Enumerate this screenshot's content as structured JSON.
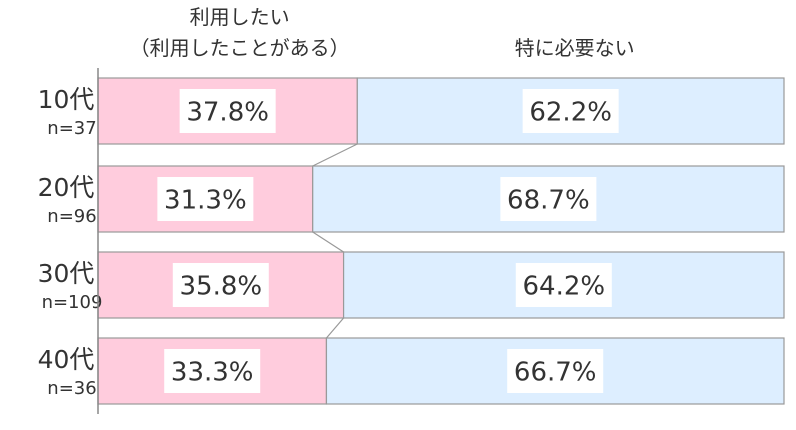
{
  "chart_data": {
    "type": "bar",
    "stacked": true,
    "orientation": "horizontal",
    "normalized_percent": true,
    "series_headers": [
      [
        "利用したい",
        "（利用したことがある）"
      ],
      [
        "特に必要ない"
      ]
    ],
    "categories": [
      {
        "label": "10代",
        "n": "n=37"
      },
      {
        "label": "20代",
        "n": "n=96"
      },
      {
        "label": "30代",
        "n": "n=109"
      },
      {
        "label": "40代",
        "n": "n=36"
      }
    ],
    "series": [
      {
        "values": [
          37.8,
          31.3,
          35.8,
          33.3
        ],
        "labels": [
          "37.8%",
          "31.3%",
          "35.8%",
          "33.3%"
        ],
        "color": "#FFCCDD"
      },
      {
        "values": [
          62.2,
          68.7,
          64.2,
          66.7
        ],
        "labels": [
          "62.2%",
          "68.7%",
          "64.2%",
          "66.7%"
        ],
        "color": "#DDEEFF"
      }
    ],
    "xlim": [
      0,
      100
    ],
    "grid": false,
    "connector_lines": true,
    "colors": {
      "bar_border": "#999999",
      "axis_line": "#888888",
      "label_box": "#FFFFFF",
      "text": "#333333"
    }
  }
}
